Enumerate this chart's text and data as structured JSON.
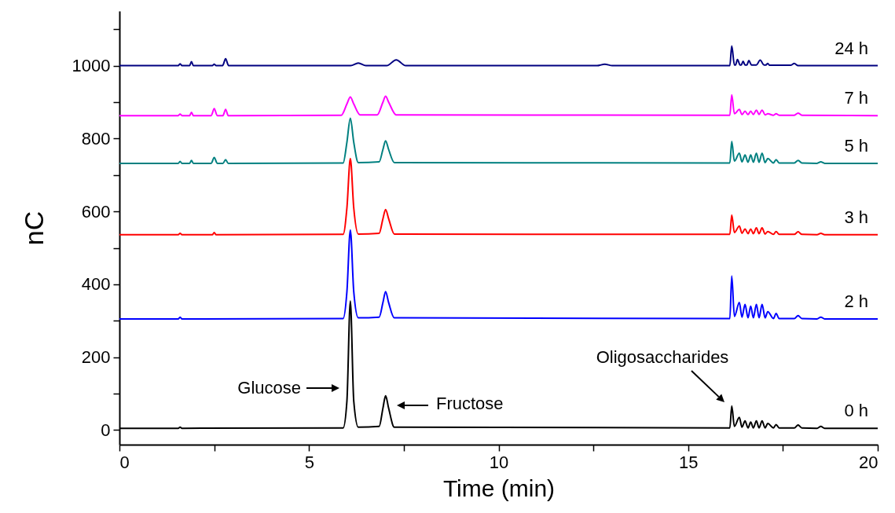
{
  "chart_data": {
    "type": "line",
    "xlabel": "Time (min)",
    "ylabel": "nC",
    "xlim": [
      0,
      20
    ],
    "ylim": [
      -40,
      1150
    ],
    "xticks": [
      0,
      {
        "value": 2.5,
        "label": null
      },
      5,
      {
        "value": 7.5,
        "label": null
      },
      10,
      {
        "value": 12.5,
        "label": null
      },
      15,
      {
        "value": 17.5,
        "label": null
      },
      20
    ],
    "yticks": [
      0,
      {
        "value": 100,
        "label": null
      },
      200,
      {
        "value": 300,
        "label": null
      },
      400,
      {
        "value": 500,
        "label": null
      },
      600,
      {
        "value": 700,
        "label": null
      },
      800,
      {
        "value": 900,
        "label": null
      },
      1000,
      {
        "value": 1100,
        "label": null
      }
    ],
    "grid": false,
    "marker": "none",
    "line_style": "solid",
    "series": [
      {
        "name": "0 h",
        "color": "#000000",
        "x": [
          0,
          1.55,
          1.6,
          1.65,
          5.9,
          6.0,
          6.09,
          6.18,
          6.3,
          6.85,
          6.95,
          7.02,
          7.1,
          7.25,
          16.1,
          16.15,
          16.22,
          16.35,
          16.42,
          16.5,
          16.58,
          16.65,
          16.72,
          16.8,
          16.87,
          16.95,
          17.03,
          17.1,
          17.25,
          17.32,
          17.4,
          17.8,
          17.9,
          18.0,
          18.4,
          18.5,
          18.6,
          20
        ],
        "values": [
          5,
          5,
          8,
          5,
          6,
          80,
          354,
          80,
          8,
          10,
          60,
          94,
          60,
          8,
          6,
          66,
          10,
          35,
          8,
          25,
          6,
          22,
          6,
          25,
          6,
          25,
          6,
          18,
          6,
          15,
          6,
          6,
          14,
          6,
          5,
          10,
          5,
          5
        ]
      },
      {
        "name": "2 h",
        "color": "#0000ff",
        "x": [
          0,
          1.55,
          1.6,
          1.65,
          5.9,
          6.0,
          6.09,
          6.18,
          6.3,
          6.85,
          6.95,
          7.02,
          7.1,
          7.25,
          16.1,
          16.15,
          16.22,
          16.35,
          16.42,
          16.5,
          16.58,
          16.65,
          16.72,
          16.8,
          16.87,
          16.95,
          17.03,
          17.1,
          17.25,
          17.32,
          17.4,
          17.8,
          17.9,
          18.0,
          18.4,
          18.5,
          18.6,
          20
        ],
        "values": [
          305,
          305,
          310,
          305,
          306,
          380,
          549,
          380,
          308,
          310,
          350,
          380,
          350,
          308,
          306,
          423,
          312,
          350,
          310,
          345,
          308,
          340,
          308,
          345,
          308,
          345,
          308,
          325,
          306,
          320,
          306,
          306,
          314,
          306,
          305,
          310,
          305,
          305
        ]
      },
      {
        "name": "3 h",
        "color": "#ff0000",
        "x": [
          0,
          1.55,
          1.6,
          1.65,
          2.45,
          2.5,
          2.55,
          5.9,
          6.0,
          6.09,
          6.18,
          6.3,
          6.85,
          6.95,
          7.02,
          7.1,
          7.25,
          16.1,
          16.15,
          16.22,
          16.35,
          16.42,
          16.5,
          16.58,
          16.65,
          16.72,
          16.8,
          16.87,
          16.95,
          17.03,
          17.1,
          17.25,
          17.32,
          17.4,
          17.8,
          17.9,
          18.0,
          18.4,
          18.5,
          18.6,
          20
        ],
        "values": [
          536,
          536,
          540,
          536,
          536,
          542,
          536,
          537,
          610,
          745,
          610,
          538,
          540,
          580,
          605,
          580,
          538,
          537,
          590,
          542,
          560,
          540,
          552,
          539,
          552,
          539,
          555,
          539,
          555,
          538,
          545,
          537,
          545,
          537,
          537,
          544,
          537,
          536,
          540,
          536,
          536
        ]
      },
      {
        "name": "5 h",
        "color": "#008080",
        "x": [
          0,
          1.55,
          1.6,
          1.65,
          1.85,
          1.9,
          1.95,
          2.42,
          2.5,
          2.58,
          2.73,
          2.8,
          2.87,
          5.9,
          6.0,
          6.09,
          6.18,
          6.3,
          6.85,
          6.95,
          7.02,
          7.1,
          7.25,
          16.1,
          16.15,
          16.22,
          16.35,
          16.42,
          16.5,
          16.58,
          16.65,
          16.72,
          16.8,
          16.87,
          16.95,
          17.03,
          17.1,
          17.25,
          17.32,
          17.4,
          17.8,
          17.9,
          18.0,
          18.4,
          18.5,
          18.6,
          20
        ],
        "values": [
          732,
          732,
          737,
          732,
          732,
          740,
          732,
          732,
          748,
          732,
          732,
          742,
          732,
          733,
          790,
          856,
          790,
          734,
          736,
          770,
          794,
          770,
          734,
          733,
          792,
          738,
          760,
          736,
          755,
          735,
          755,
          735,
          760,
          735,
          760,
          734,
          745,
          733,
          742,
          733,
          733,
          740,
          733,
          732,
          736,
          732,
          732
        ]
      },
      {
        "name": "7 h",
        "color": "#ff00ff",
        "x": [
          0,
          1.55,
          1.6,
          1.65,
          1.85,
          1.9,
          1.95,
          2.42,
          2.5,
          2.58,
          2.73,
          2.8,
          2.87,
          5.85,
          6.0,
          6.09,
          6.18,
          6.35,
          6.8,
          6.95,
          7.02,
          7.1,
          7.3,
          16.1,
          16.15,
          16.22,
          16.35,
          16.42,
          16.5,
          16.58,
          16.65,
          16.72,
          16.8,
          16.87,
          16.95,
          17.03,
          17.1,
          17.25,
          17.32,
          17.4,
          17.8,
          17.9,
          18.0,
          20
        ],
        "values": [
          863,
          863,
          867,
          863,
          863,
          872,
          863,
          863,
          882,
          863,
          863,
          880,
          863,
          864,
          895,
          914,
          895,
          865,
          865,
          900,
          916,
          900,
          865,
          864,
          920,
          868,
          880,
          866,
          875,
          866,
          875,
          866,
          878,
          866,
          878,
          865,
          868,
          864,
          868,
          864,
          864,
          870,
          864,
          863
        ]
      },
      {
        "name": "24 h",
        "color": "#000080",
        "x": [
          0,
          1.55,
          1.6,
          1.65,
          1.85,
          1.9,
          1.95,
          2.45,
          2.5,
          2.55,
          2.72,
          2.8,
          2.88,
          6.1,
          6.3,
          6.5,
          7.05,
          7.3,
          7.55,
          12.6,
          12.8,
          13.0,
          16.1,
          16.15,
          16.22,
          16.25,
          16.3,
          16.37,
          16.4,
          16.45,
          16.5,
          16.55,
          16.6,
          16.67,
          16.8,
          16.9,
          17.0,
          17.05,
          17.1,
          17.15,
          17.7,
          17.8,
          17.9,
          20
        ],
        "values": [
          1000,
          1000,
          1005,
          1000,
          1000,
          1011,
          1000,
          1000,
          1004,
          1000,
          1000,
          1019,
          1000,
          1000,
          1007,
          1000,
          1000,
          1016,
          1000,
          1000,
          1004,
          1000,
          1000,
          1054,
          1002,
          1002,
          1017,
          1002,
          1002,
          1012,
          1002,
          1002,
          1014,
          1002,
          1002,
          1015,
          1002,
          1002,
          1006,
          1001,
          1001,
          1006,
          1000,
          1000
        ]
      }
    ],
    "annotations": [
      "Glucose",
      "Fructose",
      "Oligosaccharides"
    ]
  }
}
